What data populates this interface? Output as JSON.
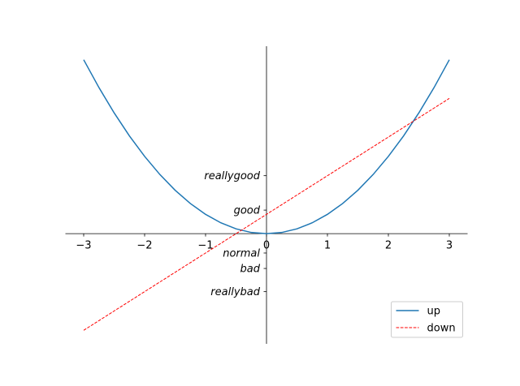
{
  "chart_data": {
    "type": "line",
    "x": [
      -3,
      -2.75,
      -2.5,
      -2.25,
      -2,
      -1.75,
      -1.5,
      -1.25,
      -1,
      -0.75,
      -0.5,
      -0.25,
      0,
      0.25,
      0.5,
      0.75,
      1,
      1.25,
      1.5,
      1.75,
      2,
      2.25,
      2.5,
      2.75,
      3
    ],
    "series": [
      {
        "name": "up",
        "color": "#1f77b4",
        "dash": false,
        "values": [
          9,
          7.5625,
          6.25,
          5.0625,
          4,
          3.0625,
          2.25,
          1.5625,
          1,
          0.5625,
          0.25,
          0.0625,
          0,
          0.0625,
          0.25,
          0.5625,
          1,
          1.5625,
          2.25,
          3.0625,
          4,
          5.0625,
          6.25,
          7.5625,
          9
        ]
      },
      {
        "name": "down",
        "color": "#ff0000",
        "dash": true,
        "values": [
          -5,
          -4.5,
          -4,
          -3.5,
          -3,
          -2.5,
          -2,
          -1.5,
          -1,
          -0.5,
          0,
          0.5,
          1,
          1.5,
          2,
          2.5,
          3,
          3.5,
          4,
          4.5,
          5,
          5.5,
          6,
          6.5,
          7
        ]
      }
    ],
    "xlim": [
      -3.3,
      3.3
    ],
    "ylim": [
      -5.7,
      9.7
    ],
    "xticks": [
      {
        "value": -3,
        "label": "−3"
      },
      {
        "value": -2,
        "label": "−2"
      },
      {
        "value": -1,
        "label": "−1"
      },
      0,
      1,
      2,
      3
    ],
    "yticks": [
      {
        "value": -3,
        "label": "reallybad"
      },
      {
        "value": -1.8,
        "label": "bad"
      },
      {
        "value": -1,
        "label": "normal"
      },
      {
        "value": 1.22,
        "label": "good"
      },
      {
        "value": 3,
        "label": "reallygood"
      }
    ],
    "legend": "lower right"
  }
}
